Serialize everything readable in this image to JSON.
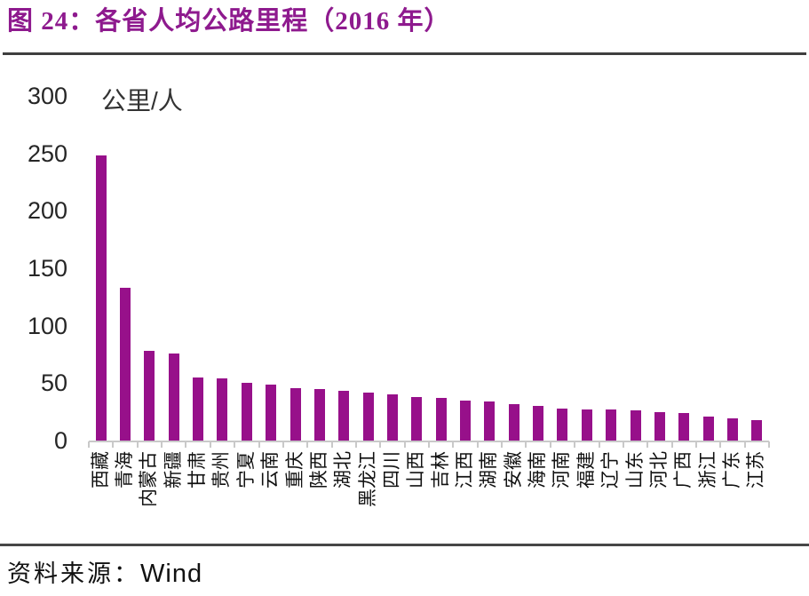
{
  "header": {
    "title": "图 24：各省人均公路里程（2016 年）"
  },
  "footer": {
    "source_label": "资料来源：",
    "source_name": "Wind"
  },
  "colors": {
    "title_purple": "#8e1a8e",
    "bar_purple": "#97108a",
    "axis_gray": "#c9c9c9",
    "rule_gray": "#3f3f3f"
  },
  "chart_data": {
    "type": "bar",
    "title": "图 24：各省人均公路里程（2016 年）",
    "xlabel": "",
    "ylabel": "公里/人",
    "unit_label": "公里/人",
    "categories": [
      "西藏",
      "青海",
      "内蒙古",
      "新疆",
      "甘肃",
      "贵州",
      "宁夏",
      "云南",
      "重庆",
      "陕西",
      "湖北",
      "黑龙江",
      "四川",
      "山西",
      "吉林",
      "江西",
      "湖南",
      "安徽",
      "海南",
      "河南",
      "福建",
      "辽宁",
      "山东",
      "河北",
      "广西",
      "浙江",
      "广东",
      "江苏"
    ],
    "values": [
      248,
      133,
      78,
      76,
      55,
      54,
      50,
      49,
      46,
      45,
      43,
      42,
      40,
      38,
      37,
      35,
      34,
      32,
      30,
      28,
      27,
      27,
      26,
      25,
      24,
      21,
      19,
      18
    ],
    "ylim": [
      0,
      300
    ],
    "yticks": [
      0,
      50,
      100,
      150,
      200,
      250,
      300
    ],
    "grid": false,
    "legend_position": "none",
    "bar_color": "#97108a",
    "source": "资料来源：Wind"
  }
}
